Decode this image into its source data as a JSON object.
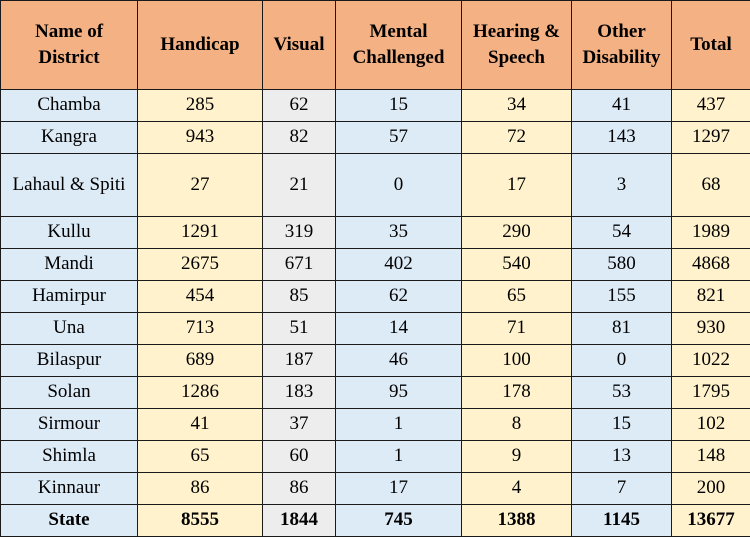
{
  "table": {
    "headers": [
      "Name of District",
      "Handicap",
      "Visual",
      "Mental Challenged",
      "Hearing & Speech",
      "Other Disability",
      "Total"
    ],
    "rows": [
      {
        "district": "Chamba",
        "handicap": "285",
        "visual": "62",
        "mental": "15",
        "hearing": "34",
        "other": "41",
        "total": "437"
      },
      {
        "district": "Kangra",
        "handicap": "943",
        "visual": "82",
        "mental": "57",
        "hearing": "72",
        "other": "143",
        "total": "1297"
      },
      {
        "district": "Lahaul & Spiti",
        "handicap": "27",
        "visual": "21",
        "mental": "0",
        "hearing": "17",
        "other": "3",
        "total": "68"
      },
      {
        "district": "Kullu",
        "handicap": "1291",
        "visual": "319",
        "mental": "35",
        "hearing": "290",
        "other": "54",
        "total": "1989"
      },
      {
        "district": "Mandi",
        "handicap": "2675",
        "visual": "671",
        "mental": "402",
        "hearing": "540",
        "other": "580",
        "total": "4868"
      },
      {
        "district": "Hamirpur",
        "handicap": "454",
        "visual": "85",
        "mental": "62",
        "hearing": "65",
        "other": "155",
        "total": "821"
      },
      {
        "district": "Una",
        "handicap": "713",
        "visual": "51",
        "mental": "14",
        "hearing": "71",
        "other": "81",
        "total": "930"
      },
      {
        "district": "Bilaspur",
        "handicap": "689",
        "visual": "187",
        "mental": "46",
        "hearing": "100",
        "other": "0",
        "total": "1022"
      },
      {
        "district": "Solan",
        "handicap": "1286",
        "visual": "183",
        "mental": "95",
        "hearing": "178",
        "other": "53",
        "total": "1795"
      },
      {
        "district": "Sirmour",
        "handicap": "41",
        "visual": "37",
        "mental": "1",
        "hearing": "8",
        "other": "15",
        "total": "102"
      },
      {
        "district": "Shimla",
        "handicap": "65",
        "visual": "60",
        "mental": "1",
        "hearing": "9",
        "other": "13",
        "total": "148"
      },
      {
        "district": "Kinnaur",
        "handicap": "86",
        "visual": "86",
        "mental": "17",
        "hearing": "4",
        "other": "7",
        "total": "200"
      }
    ],
    "state": {
      "district": "State",
      "handicap": "8555",
      "visual": "1844",
      "mental": "745",
      "hearing": "1388",
      "other": "1145",
      "total": "13677"
    }
  },
  "colors": {
    "header_bg": "#f4b183",
    "district_bg": "#ddebf7",
    "yellow_bg": "#fff2cc",
    "grey_bg": "#ededed",
    "blue_bg": "#ddebf7",
    "border": "#1a1a1a"
  }
}
